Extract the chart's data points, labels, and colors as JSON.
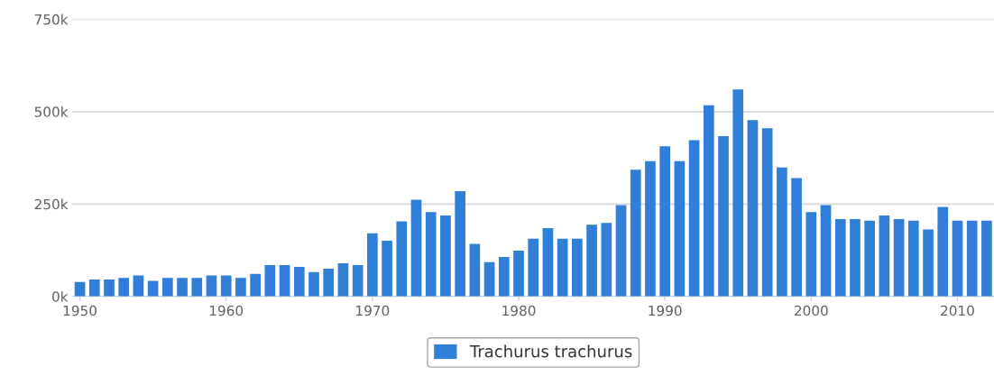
{
  "chart_data": {
    "type": "bar",
    "x": [
      1950,
      1951,
      1952,
      1953,
      1954,
      1955,
      1956,
      1957,
      1958,
      1959,
      1960,
      1961,
      1962,
      1963,
      1964,
      1965,
      1966,
      1967,
      1968,
      1969,
      1970,
      1971,
      1972,
      1973,
      1974,
      1975,
      1976,
      1977,
      1978,
      1979,
      1980,
      1981,
      1982,
      1983,
      1984,
      1985,
      1986,
      1987,
      1988,
      1989,
      1990,
      1991,
      1992,
      1993,
      1994,
      1995,
      1996,
      1997,
      1998,
      1999,
      2000,
      2001,
      2002,
      2003,
      2004,
      2005,
      2006,
      2007,
      2008,
      2009,
      2010,
      2011,
      2012
    ],
    "series": [
      {
        "name": "Trachurus trachurus",
        "color": "#2f7ed8",
        "values": [
          39000,
          46000,
          46000,
          50000,
          57000,
          42000,
          50000,
          50000,
          50000,
          57000,
          57000,
          50000,
          61000,
          85000,
          85000,
          80000,
          66000,
          75000,
          90000,
          85000,
          171000,
          151000,
          203000,
          262000,
          228000,
          219000,
          285000,
          142000,
          93000,
          107000,
          124000,
          156000,
          185000,
          156000,
          156000,
          194000,
          199000,
          247000,
          343000,
          366000,
          406000,
          366000,
          423000,
          517000,
          434000,
          560000,
          477000,
          455000,
          349000,
          320000,
          228000,
          247000,
          209000,
          209000,
          205000,
          219000,
          209000,
          205000,
          181000,
          242000,
          205000,
          205000,
          205000
        ]
      }
    ],
    "xlim": [
      1949.5,
      2012.5
    ],
    "xticks": [
      1950,
      1960,
      1970,
      1980,
      1990,
      2000,
      2010
    ],
    "ylim": [
      0,
      750000
    ],
    "yticks": [
      {
        "value": 0,
        "label": "0k"
      },
      {
        "value": 250000,
        "label": "250k"
      },
      {
        "value": 500000,
        "label": "500k"
      },
      {
        "value": 750000,
        "label": "750k"
      }
    ],
    "grid": "y",
    "legend": "bottom"
  }
}
